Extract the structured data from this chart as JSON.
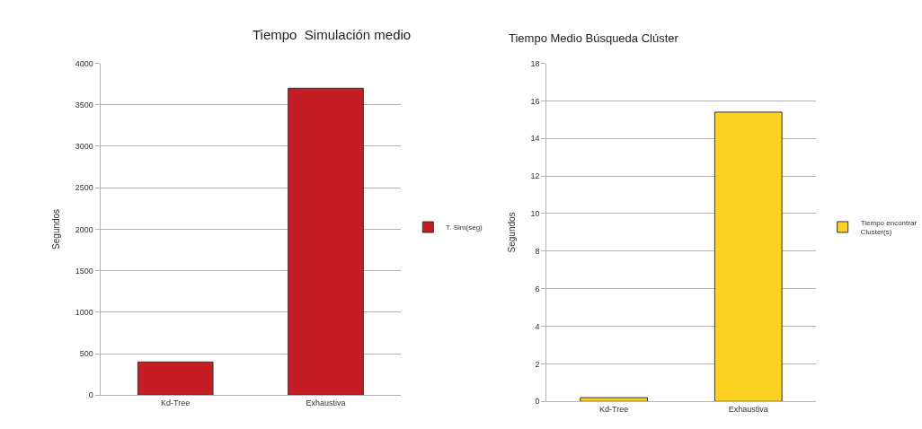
{
  "chart_data": [
    {
      "type": "bar",
      "title": "Tiempo  Simulación medio",
      "ylabel": "Segundos",
      "categories": [
        "Kd-Tree",
        "Exhaustiva"
      ],
      "series": [
        {
          "name": "T. Sim(seg)",
          "color": "#c41e24",
          "values": [
            400,
            3700
          ]
        }
      ],
      "ylim": [
        0,
        4000
      ],
      "yticks": [
        0,
        500,
        1000,
        1500,
        2000,
        2500,
        3000,
        3500,
        4000
      ],
      "grid": "y",
      "legend": "right"
    },
    {
      "type": "bar",
      "title": "Tiempo Medio Búsqueda Clúster",
      "ylabel": "Segundos",
      "categories": [
        "Kd-Tree",
        "Exhaustiva"
      ],
      "series": [
        {
          "name": "Tiempo encontrar Cluster(s)",
          "color": "#fdd11f",
          "values": [
            0.2,
            15.4
          ]
        }
      ],
      "ylim": [
        0,
        18
      ],
      "yticks": [
        0,
        2,
        4,
        6,
        8,
        10,
        12,
        14,
        16,
        18
      ],
      "grid": "y",
      "legend": "right"
    }
  ]
}
